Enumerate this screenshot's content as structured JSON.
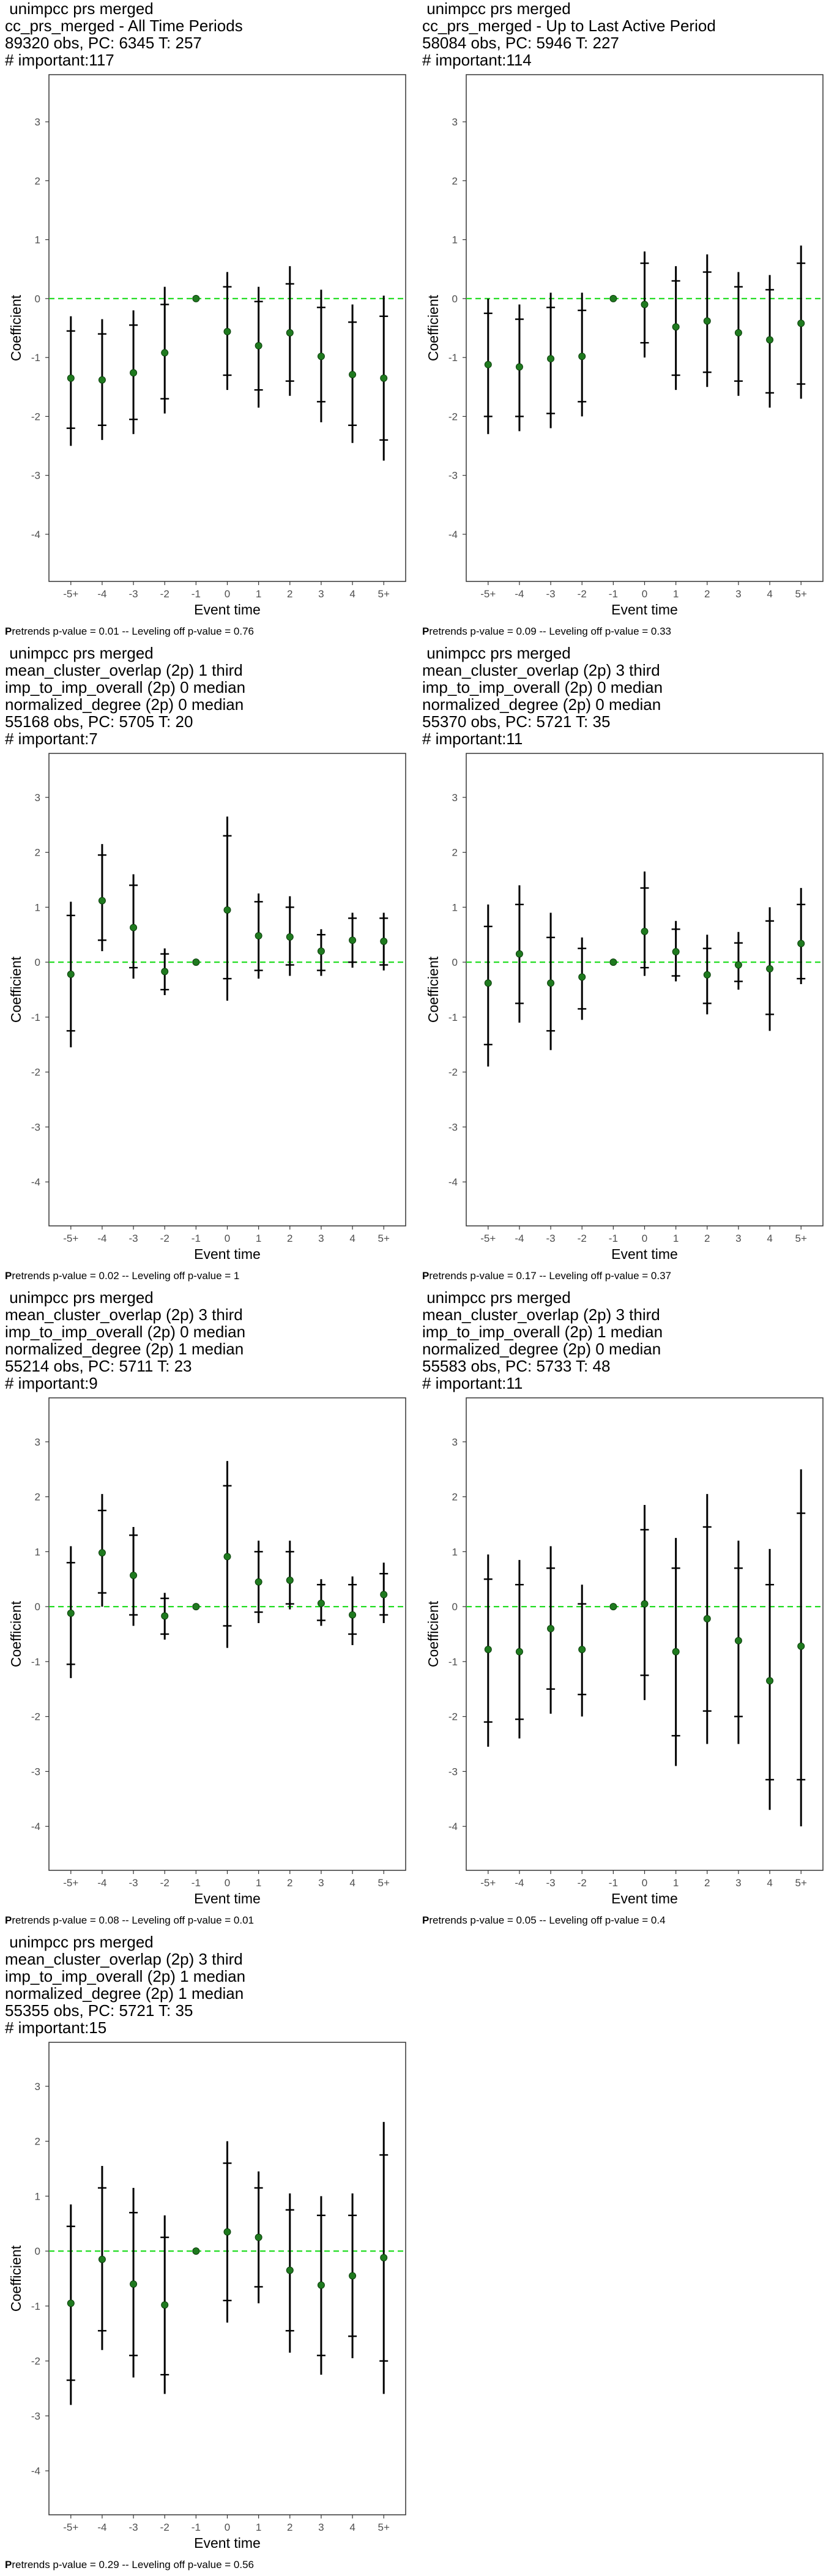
{
  "chart_data": [
    {
      "type": "scatter",
      "title_lines": [
        "unimpcc prs merged",
        "cc_prs_merged - All Time Periods",
        "89320 obs, PC: 6345 T: 257",
        "# important:117"
      ],
      "xlabel": "Event time",
      "ylabel": "Coefficient",
      "categories": [
        "-5+",
        "-4",
        "-3",
        "-2",
        "-1",
        "0",
        "1",
        "2",
        "3",
        "4",
        "5+"
      ],
      "ylim": [
        -4.8,
        3.8
      ],
      "yticks": [
        -4,
        -3,
        -2,
        -1,
        0,
        1,
        2,
        3
      ],
      "reference_line": 0,
      "estimates": [
        -1.35,
        -1.38,
        -1.26,
        -0.92,
        0,
        -0.56,
        -0.8,
        -0.58,
        -0.98,
        -1.29,
        -1.35
      ],
      "ci_outer_low": [
        -2.5,
        -2.4,
        -2.3,
        -1.95,
        0,
        -1.55,
        -1.85,
        -1.65,
        -2.1,
        -2.45,
        -2.75
      ],
      "ci_outer_high": [
        -0.3,
        -0.35,
        -0.2,
        0.2,
        0,
        0.45,
        0.2,
        0.55,
        0.15,
        -0.1,
        0.05
      ],
      "ci_inner_low": [
        -2.2,
        -2.15,
        -2.05,
        -1.7,
        0,
        -1.3,
        -1.55,
        -1.4,
        -1.75,
        -2.15,
        -2.4
      ],
      "ci_inner_high": [
        -0.55,
        -0.6,
        -0.45,
        -0.1,
        0,
        0.2,
        -0.05,
        0.25,
        -0.15,
        -0.4,
        -0.3
      ],
      "footnote": {
        "bold": "P",
        "rest": "retrends p-value = 0.01 -- Leveling off p-value = 0.76"
      }
    },
    {
      "type": "scatter",
      "title_lines": [
        "unimpcc prs merged",
        "cc_prs_merged - Up to Last Active Period",
        "58084 obs, PC: 5946 T: 227",
        "# important:114"
      ],
      "xlabel": "Event time",
      "ylabel": "Coefficient",
      "categories": [
        "-5+",
        "-4",
        "-3",
        "-2",
        "-1",
        "0",
        "1",
        "2",
        "3",
        "4",
        "5+"
      ],
      "ylim": [
        -4.8,
        3.8
      ],
      "yticks": [
        -4,
        -3,
        -2,
        -1,
        0,
        1,
        2,
        3
      ],
      "reference_line": 0,
      "estimates": [
        -1.12,
        -1.16,
        -1.02,
        -0.98,
        0,
        -0.1,
        -0.48,
        -0.38,
        -0.58,
        -0.7,
        -0.42
      ],
      "ci_outer_low": [
        -2.3,
        -2.25,
        -2.2,
        -2.0,
        0,
        -1.0,
        -1.55,
        -1.5,
        -1.65,
        -1.85,
        -1.7
      ],
      "ci_outer_high": [
        0.0,
        -0.1,
        0.1,
        0.1,
        0,
        0.8,
        0.55,
        0.75,
        0.45,
        0.4,
        0.9
      ],
      "ci_inner_low": [
        -2.0,
        -2.0,
        -1.95,
        -1.75,
        0,
        -0.75,
        -1.3,
        -1.25,
        -1.4,
        -1.6,
        -1.45
      ],
      "ci_inner_high": [
        -0.25,
        -0.35,
        -0.15,
        -0.2,
        0,
        0.6,
        0.3,
        0.45,
        0.2,
        0.15,
        0.6
      ],
      "footnote": {
        "bold": "P",
        "rest": "retrends p-value = 0.09 -- Leveling off p-value = 0.33"
      }
    },
    {
      "type": "scatter",
      "title_lines": [
        "unimpcc prs merged",
        "mean_cluster_overlap (2p) 1 third",
        "imp_to_imp_overall (2p) 0 median",
        "normalized_degree (2p) 0 median",
        "55168 obs, PC: 5705 T: 20",
        "# important:7"
      ],
      "xlabel": "Event time",
      "ylabel": "Coefficient",
      "categories": [
        "-5+",
        "-4",
        "-3",
        "-2",
        "-1",
        "0",
        "1",
        "2",
        "3",
        "4",
        "5+"
      ],
      "ylim": [
        -4.8,
        3.8
      ],
      "yticks": [
        -4,
        -3,
        -2,
        -1,
        0,
        1,
        2,
        3
      ],
      "reference_line": 0,
      "estimates": [
        -0.22,
        1.12,
        0.63,
        -0.17,
        0,
        0.95,
        0.48,
        0.46,
        0.2,
        0.4,
        0.38
      ],
      "ci_outer_low": [
        -1.55,
        0.2,
        -0.3,
        -0.6,
        0,
        -0.7,
        -0.3,
        -0.25,
        -0.25,
        -0.1,
        -0.15
      ],
      "ci_outer_high": [
        1.1,
        2.15,
        1.6,
        0.25,
        0,
        2.65,
        1.25,
        1.2,
        0.6,
        0.9,
        0.9
      ],
      "ci_inner_low": [
        -1.25,
        0.4,
        -0.1,
        -0.5,
        0,
        -0.3,
        -0.15,
        -0.05,
        -0.15,
        0.0,
        -0.05
      ],
      "ci_inner_high": [
        0.85,
        1.95,
        1.4,
        0.15,
        0,
        2.3,
        1.1,
        1.0,
        0.5,
        0.8,
        0.8
      ],
      "footnote": {
        "bold": "P",
        "rest": "retrends p-value = 0.02 -- Leveling off p-value = 1"
      }
    },
    {
      "type": "scatter",
      "title_lines": [
        "unimpcc prs merged",
        "mean_cluster_overlap (2p) 3 third",
        "imp_to_imp_overall (2p) 0 median",
        "normalized_degree (2p) 0 median",
        "55370 obs, PC: 5721 T: 35",
        "# important:11"
      ],
      "xlabel": "Event time",
      "ylabel": "Coefficient",
      "categories": [
        "-5+",
        "-4",
        "-3",
        "-2",
        "-1",
        "0",
        "1",
        "2",
        "3",
        "4",
        "5+"
      ],
      "ylim": [
        -4.8,
        3.8
      ],
      "yticks": [
        -4,
        -3,
        -2,
        -1,
        0,
        1,
        2,
        3
      ],
      "reference_line": 0,
      "estimates": [
        -0.38,
        0.15,
        -0.38,
        -0.27,
        0,
        0.56,
        0.19,
        -0.23,
        -0.05,
        -0.12,
        0.34
      ],
      "ci_outer_low": [
        -1.9,
        -1.1,
        -1.6,
        -1.05,
        0,
        -0.25,
        -0.35,
        -0.95,
        -0.5,
        -1.25,
        -0.4
      ],
      "ci_outer_high": [
        1.05,
        1.4,
        0.9,
        0.45,
        0,
        1.65,
        0.75,
        0.5,
        0.55,
        1.0,
        1.35
      ],
      "ci_inner_low": [
        -1.5,
        -0.75,
        -1.25,
        -0.85,
        0,
        -0.1,
        -0.25,
        -0.75,
        -0.35,
        -0.95,
        -0.3
      ],
      "ci_inner_high": [
        0.65,
        1.05,
        0.45,
        0.25,
        0,
        1.35,
        0.6,
        0.25,
        0.35,
        0.75,
        1.05
      ],
      "footnote": {
        "bold": "P",
        "rest": "retrends p-value = 0.17 -- Leveling off p-value = 0.37"
      }
    },
    {
      "type": "scatter",
      "title_lines": [
        "unimpcc prs merged",
        "mean_cluster_overlap (2p) 3 third",
        "imp_to_imp_overall (2p) 0 median",
        "normalized_degree (2p) 1 median",
        "55214 obs, PC: 5711 T: 23",
        "# important:9"
      ],
      "xlabel": "Event time",
      "ylabel": "Coefficient",
      "categories": [
        "-5+",
        "-4",
        "-3",
        "-2",
        "-1",
        "0",
        "1",
        "2",
        "3",
        "4",
        "5+"
      ],
      "ylim": [
        -4.8,
        3.8
      ],
      "yticks": [
        -4,
        -3,
        -2,
        -1,
        0,
        1,
        2,
        3
      ],
      "reference_line": 0,
      "estimates": [
        -0.12,
        0.98,
        0.57,
        -0.17,
        0,
        0.91,
        0.45,
        0.48,
        0.06,
        -0.15,
        0.22
      ],
      "ci_outer_low": [
        -1.3,
        0.0,
        -0.35,
        -0.6,
        0,
        -0.75,
        -0.3,
        -0.05,
        -0.35,
        -0.7,
        -0.3
      ],
      "ci_outer_high": [
        1.1,
        2.05,
        1.45,
        0.25,
        0,
        2.65,
        1.2,
        1.2,
        0.5,
        0.55,
        0.8
      ],
      "ci_inner_low": [
        -1.05,
        0.25,
        -0.15,
        -0.5,
        0,
        -0.35,
        -0.1,
        0.05,
        -0.25,
        -0.5,
        -0.15
      ],
      "ci_inner_high": [
        0.8,
        1.75,
        1.3,
        0.15,
        0,
        2.2,
        1.0,
        1.0,
        0.4,
        0.4,
        0.6
      ],
      "footnote": {
        "bold": "P",
        "rest": "retrends p-value = 0.08 -- Leveling off p-value = 0.01"
      }
    },
    {
      "type": "scatter",
      "title_lines": [
        "unimpcc prs merged",
        "mean_cluster_overlap (2p) 3 third",
        "imp_to_imp_overall (2p) 1 median",
        "normalized_degree (2p) 0 median",
        "55583 obs, PC: 5733 T: 48",
        "# important:11"
      ],
      "xlabel": "Event time",
      "ylabel": "Coefficient",
      "categories": [
        "-5+",
        "-4",
        "-3",
        "-2",
        "-1",
        "0",
        "1",
        "2",
        "3",
        "4",
        "5+"
      ],
      "ylim": [
        -4.8,
        3.8
      ],
      "yticks": [
        -4,
        -3,
        -2,
        -1,
        0,
        1,
        2,
        3
      ],
      "reference_line": 0,
      "estimates": [
        -0.78,
        -0.82,
        -0.4,
        -0.78,
        0,
        0.05,
        -0.82,
        -0.22,
        -0.62,
        -1.35,
        -0.72
      ],
      "ci_outer_low": [
        -2.55,
        -2.4,
        -1.95,
        -2.0,
        0,
        -1.7,
        -2.9,
        -2.5,
        -2.5,
        -3.7,
        -4.0
      ],
      "ci_outer_high": [
        0.95,
        0.85,
        1.1,
        0.4,
        0,
        1.85,
        1.25,
        2.05,
        1.2,
        1.05,
        2.5
      ],
      "ci_inner_low": [
        -2.1,
        -2.05,
        -1.5,
        -1.6,
        0,
        -1.25,
        -2.35,
        -1.9,
        -2.0,
        -3.15,
        -3.15
      ],
      "ci_inner_high": [
        0.5,
        0.4,
        0.7,
        0.05,
        0,
        1.4,
        0.7,
        1.45,
        0.7,
        0.4,
        1.7
      ],
      "footnote": {
        "bold": "P",
        "rest": "retrends p-value = 0.05 -- Leveling off p-value = 0.4"
      }
    },
    {
      "type": "scatter",
      "title_lines": [
        "unimpcc prs merged",
        "mean_cluster_overlap (2p) 3 third",
        "imp_to_imp_overall (2p) 1 median",
        "normalized_degree (2p) 1 median",
        "55355 obs, PC: 5721 T: 35",
        "# important:15"
      ],
      "xlabel": "Event time",
      "ylabel": "Coefficient",
      "categories": [
        "-5+",
        "-4",
        "-3",
        "-2",
        "-1",
        "0",
        "1",
        "2",
        "3",
        "4",
        "5+"
      ],
      "ylim": [
        -4.8,
        3.8
      ],
      "yticks": [
        -4,
        -3,
        -2,
        -1,
        0,
        1,
        2,
        3
      ],
      "reference_line": 0,
      "estimates": [
        -0.95,
        -0.15,
        -0.6,
        -0.98,
        0,
        0.35,
        0.25,
        -0.35,
        -0.62,
        -0.45,
        -0.12
      ],
      "ci_outer_low": [
        -2.8,
        -1.8,
        -2.3,
        -2.6,
        0,
        -1.3,
        -0.95,
        -1.85,
        -2.25,
        -1.95,
        -2.6
      ],
      "ci_outer_high": [
        0.85,
        1.55,
        1.15,
        0.65,
        0,
        2.0,
        1.45,
        1.05,
        1.0,
        1.05,
        2.35
      ],
      "ci_inner_low": [
        -2.35,
        -1.45,
        -1.9,
        -2.25,
        0,
        -0.9,
        -0.65,
        -1.45,
        -1.9,
        -1.55,
        -2.0
      ],
      "ci_inner_high": [
        0.45,
        1.15,
        0.7,
        0.25,
        0,
        1.6,
        1.15,
        0.75,
        0.65,
        0.65,
        1.75
      ],
      "footnote": {
        "bold": "P",
        "rest": "retrends p-value = 0.29 -- Leveling off p-value = 0.56"
      }
    }
  ],
  "colors": {
    "point": "#1f7a1f",
    "reference_line": "#22dd22",
    "whisker": "#000000",
    "panel_border": "#333333"
  }
}
